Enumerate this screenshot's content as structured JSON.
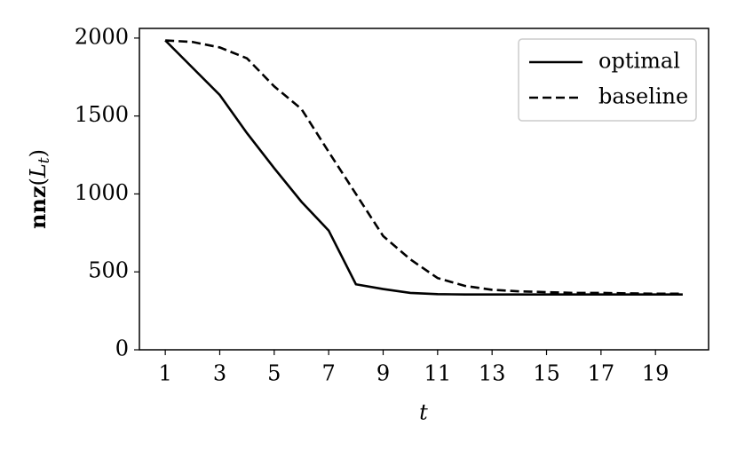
{
  "chart_data": {
    "type": "line",
    "xlabel": "t",
    "ylabel": [
      "nnz",
      "(",
      "L",
      "t",
      ")"
    ],
    "x": [
      1,
      2,
      3,
      4,
      5,
      6,
      7,
      8,
      9,
      10,
      11,
      12,
      13,
      14,
      15,
      16,
      17,
      18,
      19,
      20
    ],
    "series": [
      {
        "name": "optimal",
        "color": "#000000",
        "dash": "solid",
        "values": [
          1985,
          1810,
          1635,
          1390,
          1165,
          950,
          765,
          420,
          390,
          365,
          357,
          355,
          355,
          355,
          355,
          355,
          355,
          355,
          355,
          355
        ]
      },
      {
        "name": "baseline",
        "color": "#000000",
        "dash": "dashed",
        "values": [
          1985,
          1975,
          1940,
          1870,
          1690,
          1545,
          1270,
          1000,
          730,
          580,
          460,
          410,
          385,
          375,
          370,
          365,
          365,
          362,
          360,
          360
        ]
      }
    ],
    "xlim": [
      0.05,
      20.95
    ],
    "ylim": [
      0,
      2062
    ],
    "xticks": [
      1,
      3,
      5,
      7,
      9,
      11,
      13,
      15,
      17,
      19
    ],
    "yticks": [
      0,
      500,
      1000,
      1500,
      2000
    ],
    "grid": false,
    "legend": "upper right"
  }
}
